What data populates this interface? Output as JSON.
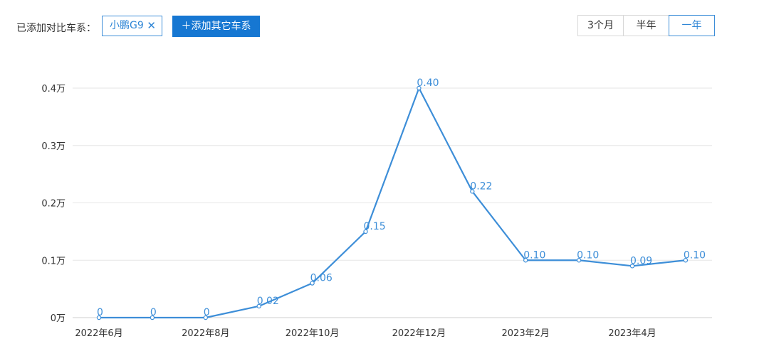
{
  "toolbar": {
    "added_label": "已添加对比车系：",
    "tag_label": "小鹏G9",
    "tag_close": "✕",
    "add_button": "＋添加其它车系",
    "ranges": [
      "3个月",
      "半年",
      "一年"
    ],
    "active_range": "一年"
  },
  "colors": {
    "accent": "#3d8ed8",
    "button": "#1677d2",
    "grid": "#e6e6e6"
  },
  "chart_data": {
    "type": "line",
    "x": [
      "2022年6月",
      "2022年7月",
      "2022年8月",
      "2022年9月",
      "2022年10月",
      "2022年11月",
      "2022年12月",
      "2023年1月",
      "2023年2月",
      "2023年3月",
      "2023年4月",
      "2023年5月"
    ],
    "x_tick_labels": [
      "2022年6月",
      "",
      "2022年8月",
      "",
      "2022年10月",
      "",
      "2022年12月",
      "",
      "2023年2月",
      "",
      "2023年4月",
      ""
    ],
    "series": [
      {
        "values": [
          0,
          0,
          0,
          0.02,
          0.06,
          0.15,
          0.4,
          0.22,
          0.1,
          0.1,
          0.09,
          0.1
        ],
        "labels": [
          "0",
          "0",
          "0",
          "0.02",
          "0.06",
          "0.15",
          "0.40",
          "0.22",
          "0.10",
          "0.10",
          "0.09",
          "0.10"
        ]
      }
    ],
    "y_ticks": [
      0,
      0.1,
      0.2,
      0.3,
      0.4
    ],
    "y_tick_labels": [
      "0万",
      "0.1万",
      "0.2万",
      "0.3万",
      "0.4万"
    ],
    "ylim": [
      0,
      0.4
    ],
    "grid": true,
    "xlabel": "",
    "ylabel": "",
    "title": ""
  }
}
